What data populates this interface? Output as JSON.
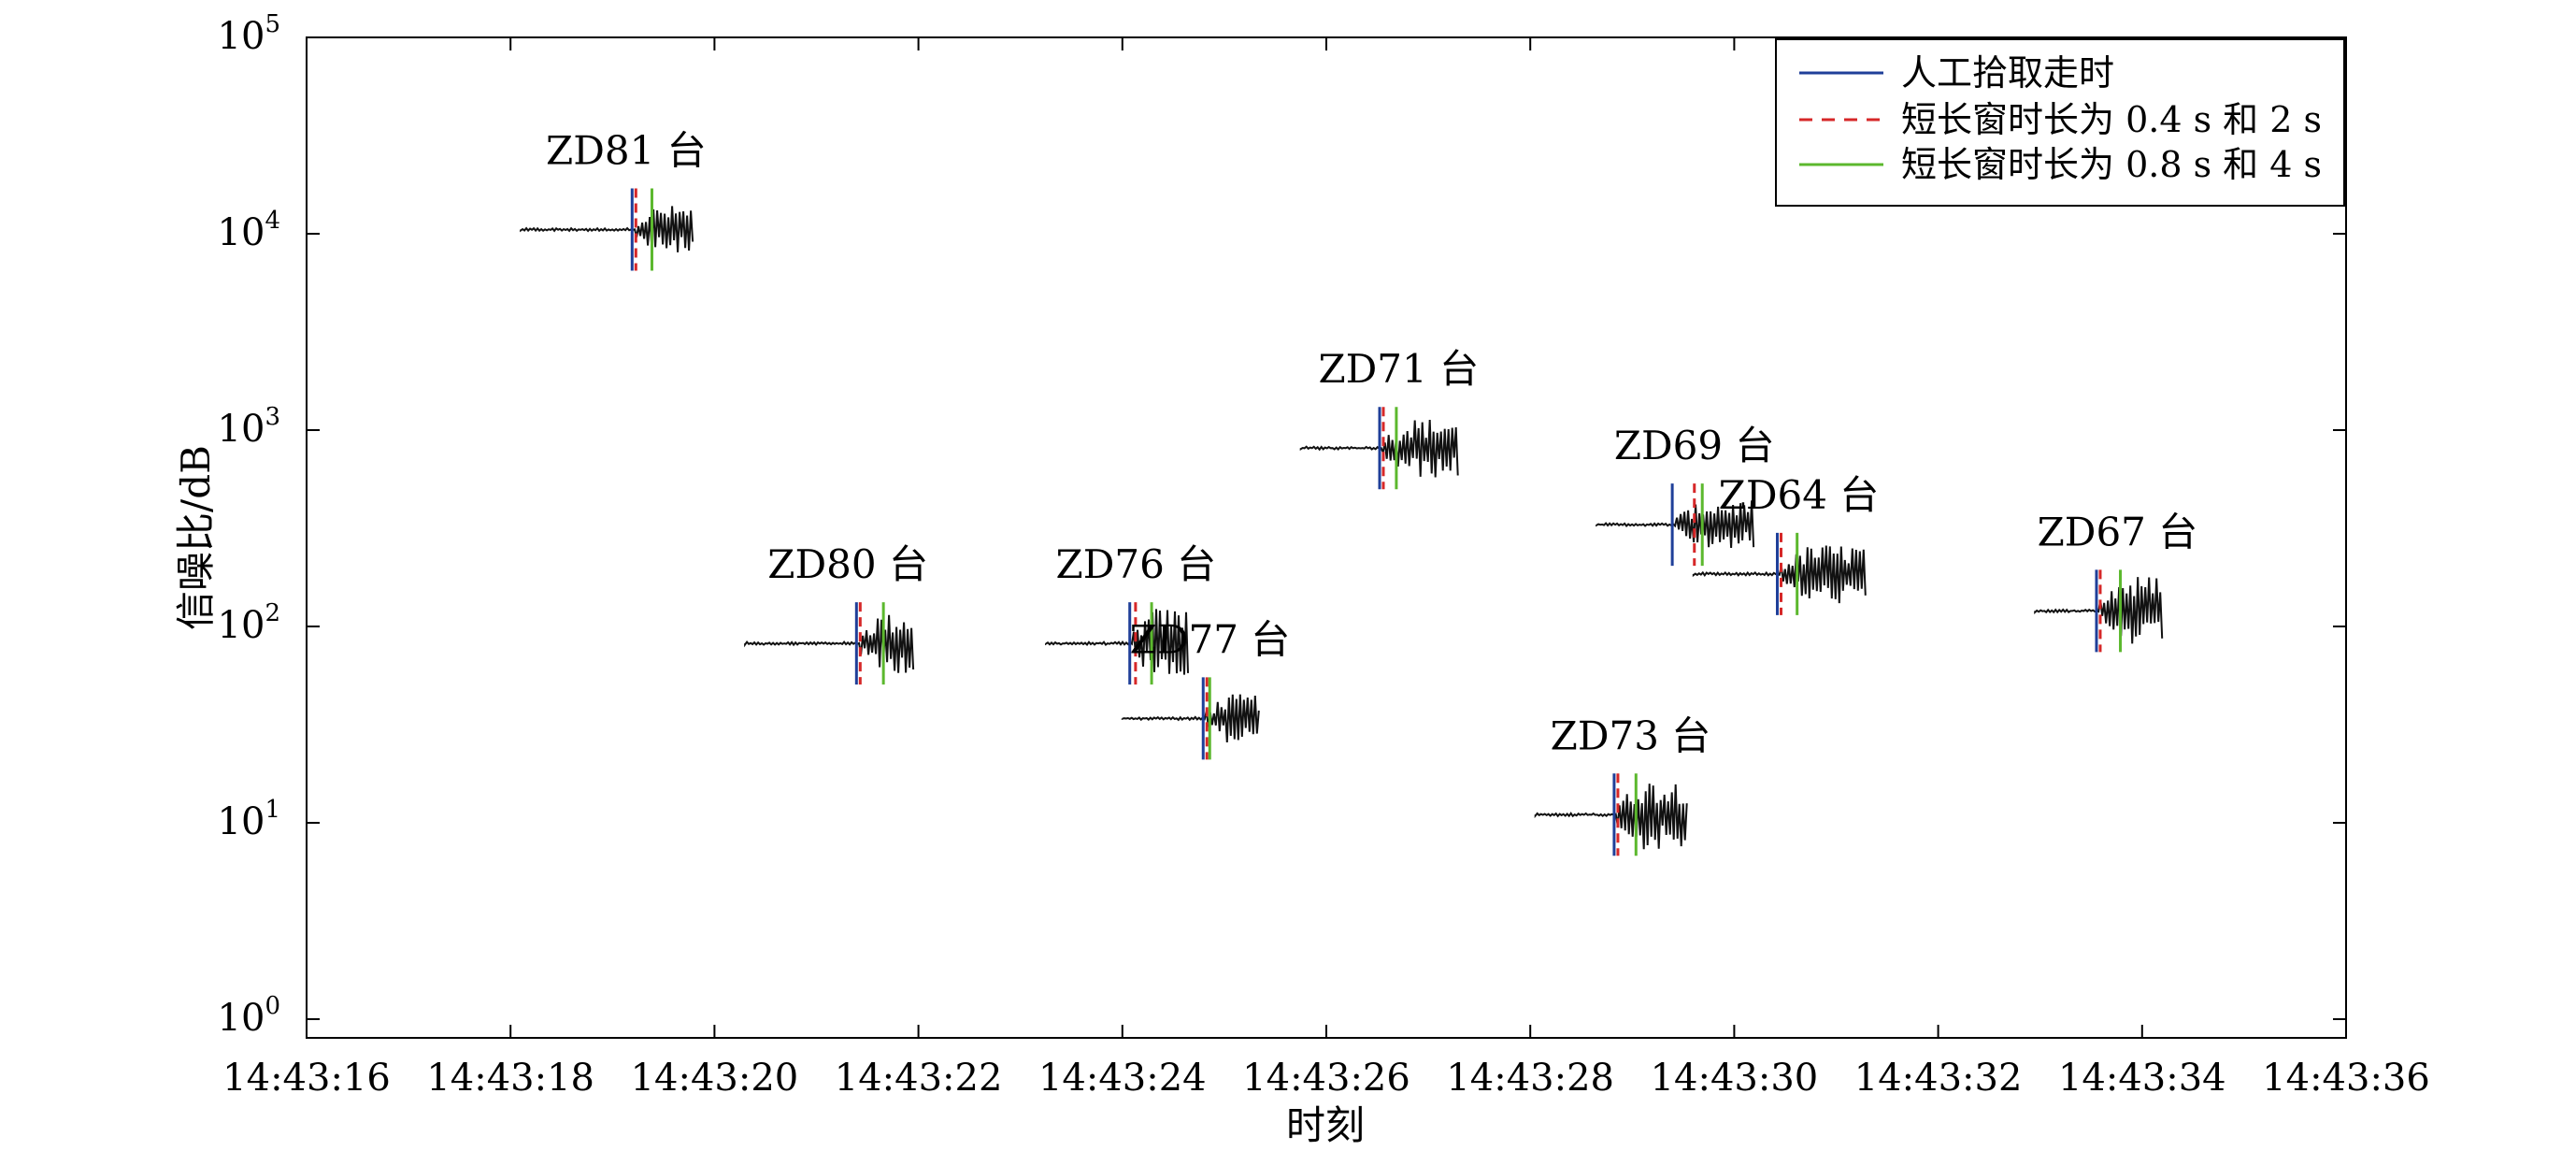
{
  "chart_data": {
    "type": "line",
    "title": "",
    "xlabel": "时刻",
    "ylabel": "信噪比/dB",
    "x_ticks": [
      "14:43:16",
      "14:43:18",
      "14:43:20",
      "14:43:22",
      "14:43:24",
      "14:43:26",
      "14:43:28",
      "14:43:30",
      "14:43:32",
      "14:43:34",
      "14:43:36"
    ],
    "x_range_seconds_of_minute": [
      16,
      36
    ],
    "y_scale": "log",
    "y_range": [
      1,
      100000
    ],
    "y_ticks": [
      {
        "base": "10",
        "exp": "0"
      },
      {
        "base": "10",
        "exp": "1"
      },
      {
        "base": "10",
        "exp": "2"
      },
      {
        "base": "10",
        "exp": "3"
      },
      {
        "base": "10",
        "exp": "4"
      },
      {
        "base": "10",
        "exp": "5"
      }
    ],
    "grid": false,
    "legend_position": "top-right",
    "legend": [
      {
        "label": "人工拾取走时",
        "color": "#1f3f99",
        "dash": "solid"
      },
      {
        "label": "短长窗时长为 0.4 s 和 2 s",
        "color": "#d62728",
        "dash": "dashed"
      },
      {
        "label": "短长窗时长为 0.8 s 和 4 s",
        "color": "#5cb82e",
        "dash": "solid"
      }
    ],
    "stations": [
      {
        "name": "ZD81 台",
        "start": 18.1,
        "end": 19.8,
        "level": 10500,
        "manual_pick": 19.22,
        "pick_04_2": 19.22,
        "pick_08_4": 19.35
      },
      {
        "name": "ZD80 台",
        "start": 20.3,
        "end": 21.95,
        "level": 82,
        "manual_pick": 21.42,
        "pick_04_2": 21.42,
        "pick_08_4": 21.62
      },
      {
        "name": "ZD76 台",
        "start": 23.25,
        "end": 24.65,
        "level": 82,
        "manual_pick": 24.1,
        "pick_04_2": 24.12,
        "pick_08_4": 24.25
      },
      {
        "name": "ZD77 台",
        "start": 24.0,
        "end": 25.35,
        "level": 34,
        "manual_pick": 24.82,
        "pick_04_2": 24.82,
        "pick_08_4": 24.82
      },
      {
        "name": "ZD71 台",
        "start": 25.75,
        "end": 27.3,
        "level": 810,
        "manual_pick": 26.55,
        "pick_04_2": 26.55,
        "pick_08_4": 26.65
      },
      {
        "name": "ZD73 台",
        "start": 28.05,
        "end": 29.55,
        "level": 11,
        "manual_pick": 28.85,
        "pick_04_2": 28.85,
        "pick_08_4": 29.0
      },
      {
        "name": "ZD69 台",
        "start": 28.65,
        "end": 30.2,
        "level": 330,
        "manual_pick": 29.42,
        "pick_04_2": 29.6,
        "pick_08_4": 29.65
      },
      {
        "name": "ZD64 台",
        "start": 29.6,
        "end": 31.3,
        "level": 185,
        "manual_pick": 30.45,
        "pick_04_2": 30.45,
        "pick_08_4": 30.58
      },
      {
        "name": "ZD67 台",
        "start": 32.95,
        "end": 34.2,
        "level": 120,
        "manual_pick": 33.58,
        "pick_04_2": 33.58,
        "pick_08_4": 33.75
      }
    ]
  }
}
